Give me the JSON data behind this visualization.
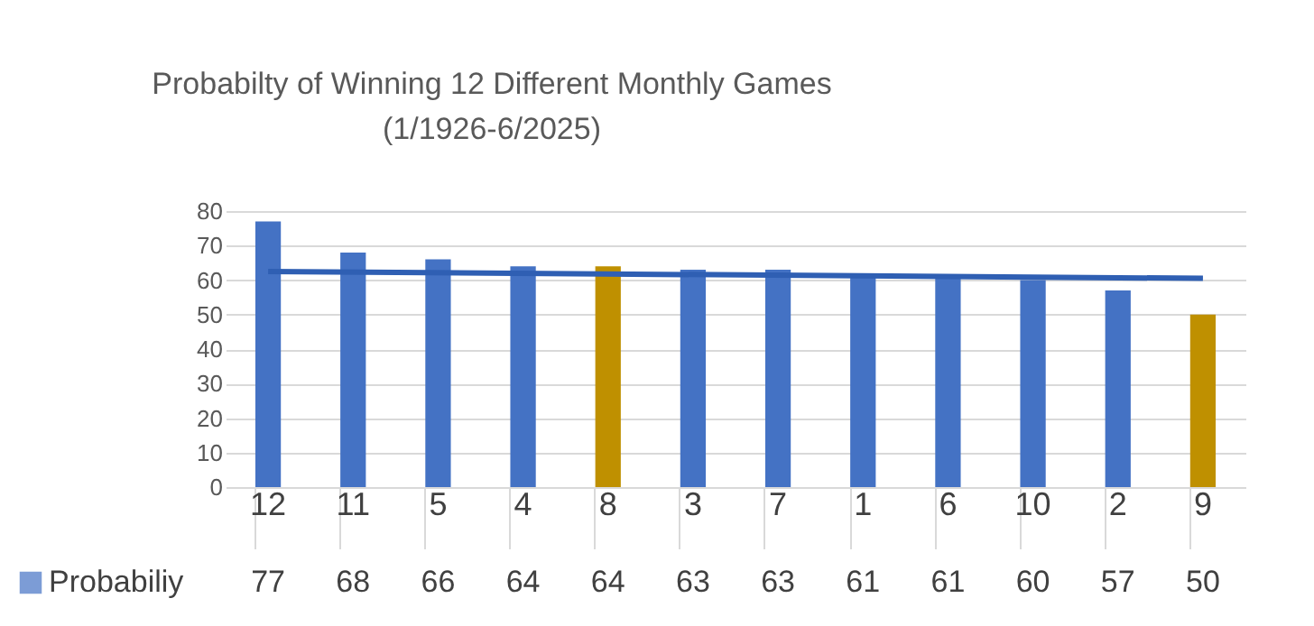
{
  "chart_data": {
    "type": "bar",
    "title": "Probabilty of Winning 12 Different Monthly  Games",
    "subtitle": "(1/1926-6/2025)",
    "categories": [
      "12",
      "11",
      "5",
      "4",
      "8",
      "3",
      "7",
      "1",
      "6",
      "10",
      "2",
      "9"
    ],
    "series": [
      {
        "name": "Probabiliy",
        "color": "#4472c4",
        "colors": [
          "#4472c4",
          "#4472c4",
          "#4472c4",
          "#4472c4",
          "#bf9000",
          "#4472c4",
          "#4472c4",
          "#4472c4",
          "#4472c4",
          "#4472c4",
          "#4472c4",
          "#bf9000"
        ],
        "values": [
          77,
          68,
          66,
          64,
          64,
          63,
          63,
          61,
          61,
          60,
          57,
          50
        ],
        "value_labels": [
          "77",
          "68",
          "66",
          "64",
          "64",
          "63",
          "63",
          "61",
          "61",
          "60",
          "57",
          "50"
        ]
      },
      {
        "type": "line",
        "color": "#2f5fb3",
        "x": [
          "12",
          "9"
        ],
        "values": [
          62.5,
          60.5
        ]
      }
    ],
    "ylim": [
      0,
      80
    ],
    "yticks": [
      0,
      10,
      20,
      30,
      40,
      50,
      60,
      70,
      80
    ],
    "grid": "y",
    "legend": "bottom"
  }
}
